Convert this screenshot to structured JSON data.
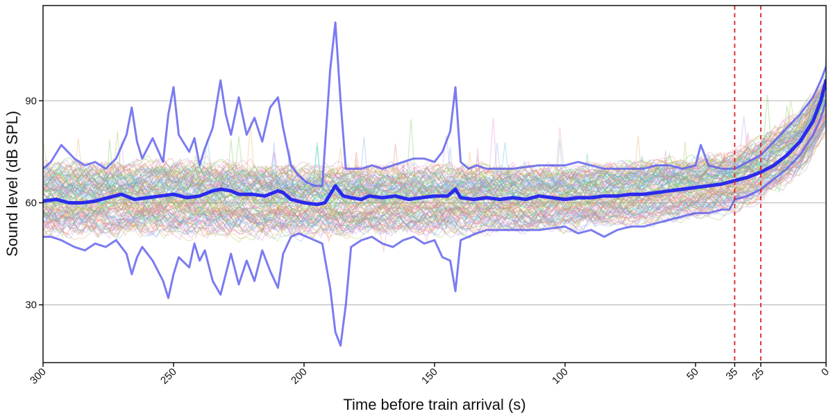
{
  "chart_data": {
    "type": "line",
    "title": "",
    "xlabel": "Time before train arrival (s)",
    "ylabel": "Sound level (dB SPL)",
    "xlim": [
      300,
      0
    ],
    "ylim": [
      13,
      118
    ],
    "x_reversed": true,
    "grid": "horizontal",
    "legend": "none",
    "x_ticks": [
      300,
      250,
      200,
      150,
      100,
      50,
      35,
      25,
      0
    ],
    "y_ticks": [
      30,
      60,
      90
    ],
    "reference_lines": [
      {
        "x": 35,
        "color": "#dd2222",
        "style": "dashed"
      },
      {
        "x": 25,
        "color": "#dd2222",
        "style": "dashed"
      }
    ],
    "background_traces": {
      "count": 120,
      "opacity": 0.35,
      "colors": [
        "#e86e6e",
        "#6cc24a",
        "#4fb3e8",
        "#e8a34f",
        "#b98ae8",
        "#e87ac6",
        "#3fc8b0",
        "#9ac23e",
        "#f08a8a",
        "#7a9ee8"
      ],
      "envelope": [
        {
          "x": 300,
          "low": 47,
          "high": 75
        },
        {
          "x": 250,
          "low": 47,
          "high": 76
        },
        {
          "x": 200,
          "low": 47,
          "high": 74
        },
        {
          "x": 150,
          "low": 48,
          "high": 74
        },
        {
          "x": 100,
          "low": 49,
          "high": 74
        },
        {
          "x": 50,
          "low": 53,
          "high": 76
        },
        {
          "x": 35,
          "low": 55,
          "high": 78
        },
        {
          "x": 25,
          "low": 58,
          "high": 82
        },
        {
          "x": 10,
          "low": 65,
          "high": 90
        },
        {
          "x": 0,
          "low": 78,
          "high": 100
        }
      ]
    },
    "series": [
      {
        "role": "median",
        "color": "#2222ee",
        "width": 5,
        "x": [
          300,
          295,
          290,
          285,
          280,
          275,
          270,
          265,
          260,
          255,
          250,
          245,
          240,
          235,
          232,
          228,
          225,
          220,
          215,
          210,
          208,
          205,
          200,
          195,
          192,
          188,
          185,
          182,
          178,
          175,
          170,
          165,
          160,
          155,
          150,
          145,
          142,
          140,
          135,
          130,
          125,
          120,
          115,
          110,
          105,
          100,
          95,
          90,
          85,
          80,
          75,
          70,
          65,
          60,
          55,
          50,
          45,
          40,
          35,
          30,
          25,
          20,
          15,
          10,
          5,
          2,
          0
        ],
        "y": [
          60.5,
          61,
          60,
          60,
          60.5,
          61.5,
          62.5,
          61,
          61.5,
          62,
          62.5,
          61.5,
          62,
          63.5,
          64,
          63.5,
          62.5,
          62.5,
          62,
          63.5,
          63,
          61,
          60,
          59.5,
          60,
          65,
          62,
          61.5,
          61,
          62,
          61.5,
          62,
          61,
          61.5,
          62,
          62,
          64,
          61.5,
          61,
          61.5,
          61,
          61.5,
          61,
          62,
          61.5,
          61,
          61.5,
          61.5,
          62,
          62,
          62.5,
          62.5,
          63,
          63.5,
          64,
          64.5,
          65,
          65.5,
          66.5,
          67.5,
          69,
          71,
          74,
          78,
          84,
          90,
          96
        ]
      },
      {
        "role": "upper-percentile",
        "color": "#5a5aee",
        "width": 3,
        "x": [
          300,
          297,
          293,
          288,
          284,
          280,
          276,
          272,
          268,
          266,
          264,
          262,
          258,
          254,
          252,
          250,
          248,
          244,
          242,
          240,
          238,
          235,
          232,
          230,
          228,
          225,
          222,
          219,
          216,
          213,
          210,
          208,
          205,
          202,
          199,
          196,
          193,
          190,
          188,
          186,
          184,
          182,
          178,
          174,
          170,
          166,
          162,
          158,
          154,
          150,
          147,
          144,
          142,
          140,
          137,
          134,
          130,
          120,
          110,
          100,
          95,
          90,
          85,
          80,
          75,
          70,
          65,
          60,
          55,
          50,
          48,
          45,
          40,
          35,
          30,
          25,
          20,
          15,
          10,
          5,
          2,
          0
        ],
        "y": [
          70,
          72,
          77,
          73,
          71,
          72,
          70,
          73,
          80,
          88,
          78,
          73,
          79,
          72,
          86,
          94,
          80,
          75,
          79,
          71,
          76,
          82,
          96,
          86,
          80,
          91,
          80,
          85,
          78,
          88,
          91,
          82,
          71,
          68,
          66,
          65,
          65,
          99,
          113,
          90,
          70,
          70,
          70,
          71,
          70,
          71,
          72,
          73,
          73,
          72,
          75,
          81,
          94,
          72,
          70,
          71,
          70,
          70,
          71,
          71,
          72,
          71,
          70,
          70,
          70,
          70,
          71,
          71,
          70,
          71,
          77,
          71,
          70,
          70,
          72,
          74,
          78,
          82,
          86,
          91,
          96,
          100
        ]
      },
      {
        "role": "lower-percentile",
        "color": "#5a5aee",
        "width": 3,
        "x": [
          300,
          297,
          293,
          288,
          284,
          280,
          276,
          272,
          268,
          266,
          264,
          262,
          258,
          254,
          252,
          250,
          248,
          244,
          242,
          240,
          238,
          235,
          232,
          230,
          228,
          225,
          222,
          219,
          216,
          213,
          210,
          208,
          205,
          202,
          199,
          196,
          193,
          190,
          188,
          186,
          184,
          182,
          178,
          174,
          170,
          166,
          162,
          158,
          154,
          150,
          147,
          144,
          142,
          140,
          137,
          134,
          130,
          120,
          110,
          100,
          95,
          90,
          85,
          80,
          75,
          70,
          65,
          60,
          55,
          50,
          45,
          40,
          37,
          35,
          30,
          25,
          20,
          15,
          10,
          5,
          2,
          0
        ],
        "y": [
          50,
          50,
          49,
          47,
          46,
          48,
          47,
          49,
          45,
          39,
          44,
          47,
          43,
          37,
          32,
          39,
          44,
          41,
          48,
          43,
          46,
          37,
          33,
          39,
          45,
          36,
          43,
          37,
          46,
          40,
          35,
          45,
          50,
          51,
          50,
          49,
          48,
          35,
          22,
          18,
          30,
          47,
          49,
          50,
          48,
          47,
          49,
          50,
          48,
          49,
          44,
          43,
          34,
          49,
          50,
          51,
          52,
          52,
          52,
          53,
          51,
          52,
          50,
          52,
          53,
          53,
          54,
          55,
          56,
          57,
          57,
          58,
          58,
          61,
          62,
          64,
          67,
          70,
          74,
          80,
          85,
          90
        ]
      }
    ]
  }
}
